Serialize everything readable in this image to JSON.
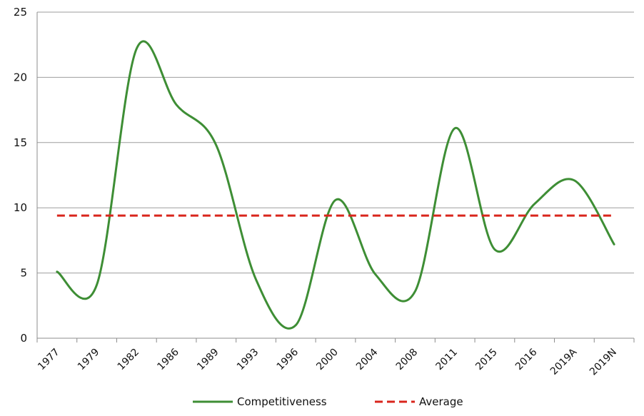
{
  "chart_data": {
    "type": "line",
    "title": "",
    "xlabel": "",
    "ylabel": "",
    "categories": [
      "1977",
      "1979",
      "1982",
      "1986",
      "1989",
      "1993",
      "1996",
      "2000",
      "2004",
      "2008",
      "2011",
      "2015",
      "2016",
      "2019A",
      "2019N"
    ],
    "ylim": [
      0,
      25
    ],
    "yticks": [
      0,
      5,
      10,
      15,
      20,
      25
    ],
    "grid": true,
    "legend": "bottom",
    "series": [
      {
        "name": "Competitiveness",
        "color": "#3e8e35",
        "style": "solid",
        "smooth": true,
        "values": [
          5.1,
          4.1,
          22.2,
          17.9,
          14.8,
          4.5,
          1.0,
          10.6,
          4.9,
          3.6,
          16.1,
          6.8,
          10.3,
          12.1,
          7.2
        ]
      },
      {
        "name": "Average",
        "color": "#d9251c",
        "style": "dashed",
        "smooth": false,
        "values": [
          9.4,
          9.4,
          9.4,
          9.4,
          9.4,
          9.4,
          9.4,
          9.4,
          9.4,
          9.4,
          9.4,
          9.4,
          9.4,
          9.4,
          9.4
        ]
      }
    ]
  }
}
